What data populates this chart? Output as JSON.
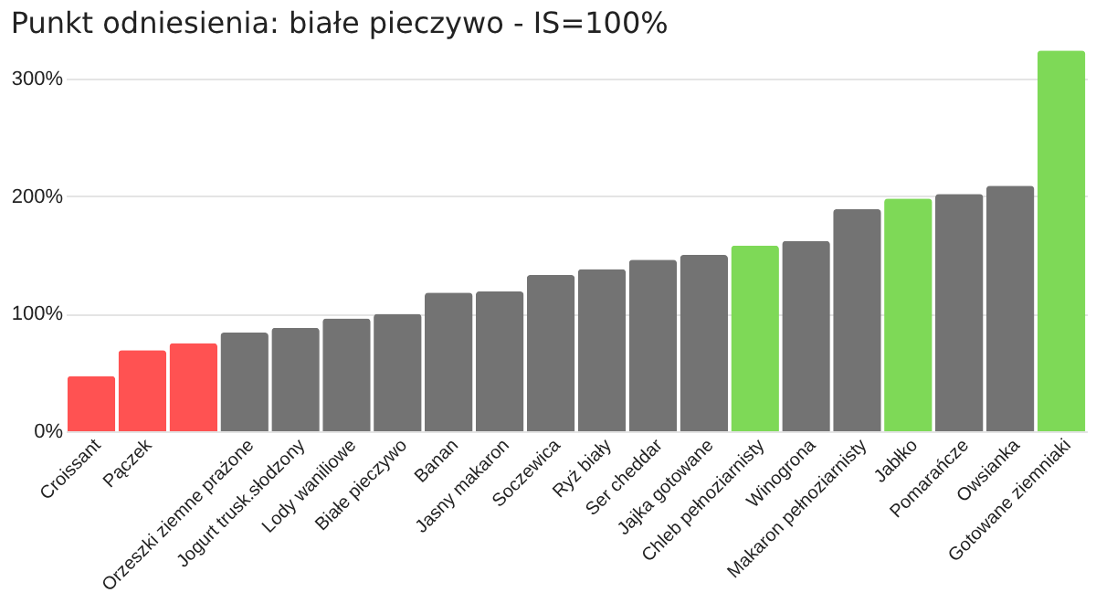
{
  "chart_data": {
    "type": "bar",
    "title": "Punkt odniesienia: białe pieczywo - IS=100%",
    "categories": [
      "Croissant",
      "Pączek",
      null,
      "Orzeszki ziemne prażone",
      "Jogurt trusk.słodzony",
      "Lody waniliowe",
      "Białe pieczywo",
      "Banan",
      "Jasny makaron",
      "Soczewica",
      "Ryż biały",
      "Ser cheddar",
      "Jajka gotowane",
      "Chleb pełnoziarnisty",
      "Winogrona",
      "Makaron pełnoziarnisty",
      "Jabłko",
      "Pomarańcze",
      "Owsianka",
      "Gotowane ziemniaki"
    ],
    "values": [
      47,
      69,
      75,
      84,
      88,
      96,
      100,
      118,
      119,
      133,
      138,
      146,
      150,
      158,
      162,
      189,
      198,
      202,
      209,
      324
    ],
    "colors": [
      "#ff5252",
      "#ff5252",
      "#ff5252",
      "#737373",
      "#737373",
      "#737373",
      "#737373",
      "#737373",
      "#737373",
      "#737373",
      "#737373",
      "#737373",
      "#737373",
      "#7ed957",
      "#737373",
      "#737373",
      "#7ed957",
      "#737373",
      "#737373",
      "#7ed957"
    ],
    "ylim": [
      0,
      325
    ],
    "yticks": [
      {
        "value": 0,
        "label": "0%"
      },
      {
        "value": 100,
        "label": "100%"
      },
      {
        "value": 200,
        "label": "200%"
      },
      {
        "value": 300,
        "label": "300%"
      }
    ],
    "grid": "y"
  }
}
